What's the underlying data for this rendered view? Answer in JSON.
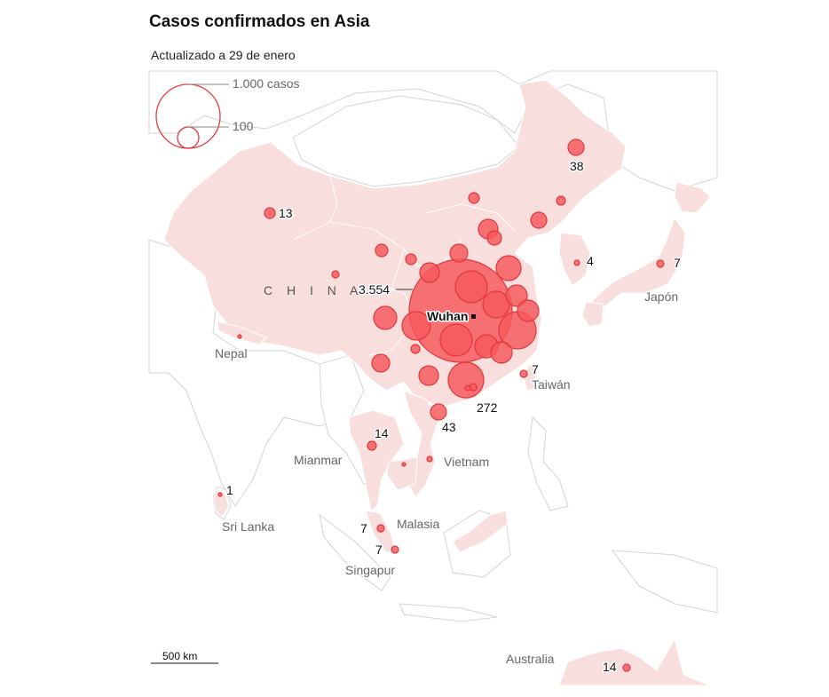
{
  "title": "Casos confirmados en Asia",
  "subtitle": "Actualizado a 29 de enero",
  "legend": {
    "large_label": "1.000 casos",
    "small_label": "100"
  },
  "scale": {
    "label": "500 km"
  },
  "colors": {
    "land_affected": "#f9dede",
    "bubble": "#f5585c",
    "bubble_stroke": "#e0373b"
  },
  "places": {
    "china": "C H I N A",
    "nepal": "Nepal",
    "japan": "Japón",
    "taiwan": "Taiwán",
    "myanmar": "Mianmar",
    "vietnam": "Vietnam",
    "srilanka": "Sri Lanka",
    "malaysia": "Malasia",
    "singapore": "Singapur",
    "australia": "Australia"
  },
  "city": {
    "wuhan": "Wuhan"
  },
  "case_labels": {
    "hubei": "3.554",
    "heilongjiang": "38",
    "xinjiang": "13",
    "korea": "4",
    "japan": "7",
    "taiwan": "7",
    "guangdong": "272",
    "hainan": "43",
    "thailand": "14",
    "srilanka": "1",
    "malaysia": "7",
    "singapore": "7",
    "australia": "14"
  }
}
